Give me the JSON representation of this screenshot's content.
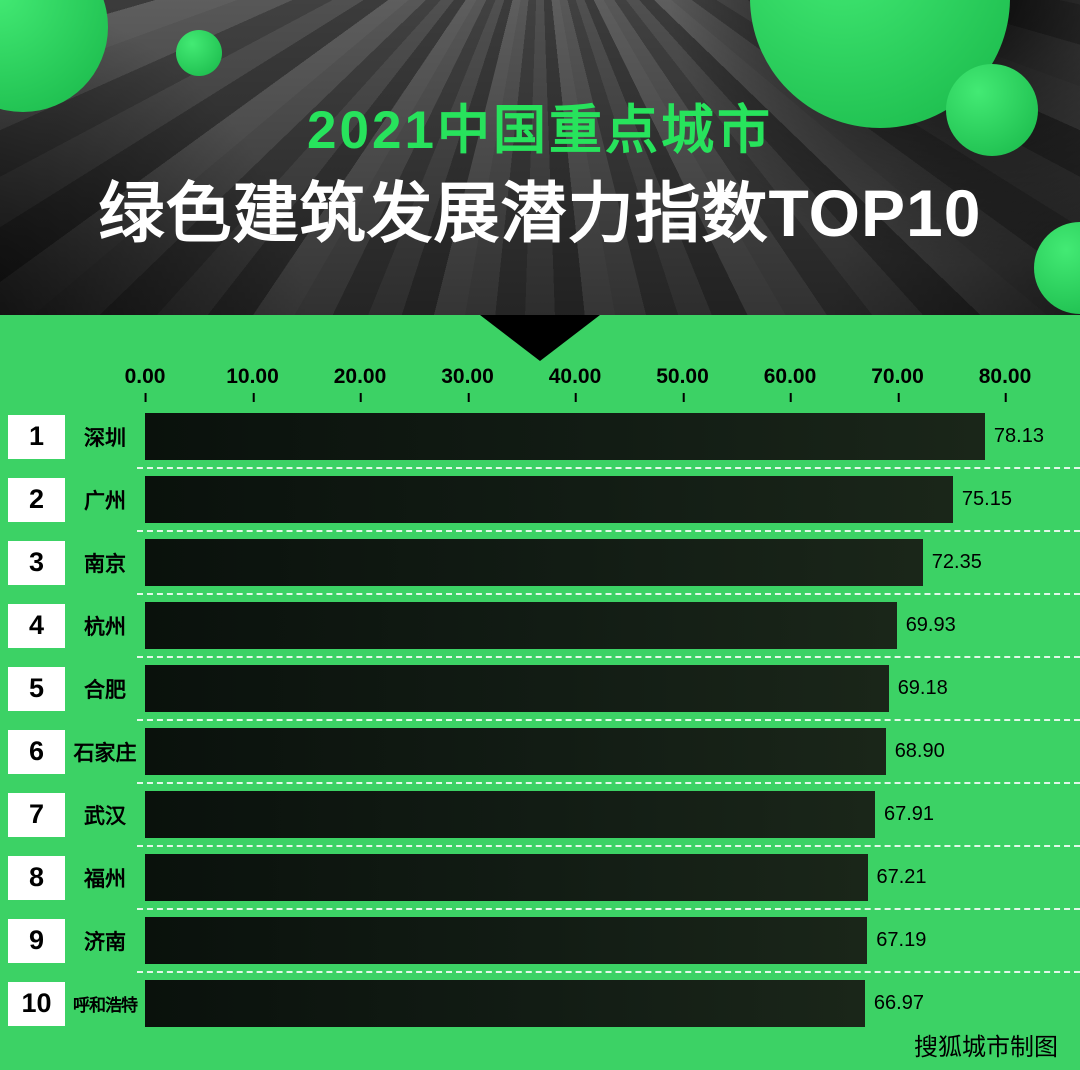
{
  "header": {
    "title_line1": "2021中国重点城市",
    "title_line2": "绿色建筑发展潜力指数TOP10"
  },
  "chart_data": {
    "type": "bar",
    "orientation": "horizontal",
    "title": "2021中国重点城市绿色建筑发展潜力指数TOP10",
    "categories": [
      "深圳",
      "广州",
      "南京",
      "杭州",
      "合肥",
      "石家庄",
      "武汉",
      "福州",
      "济南",
      "呼和浩特"
    ],
    "ranks": [
      "1",
      "2",
      "3",
      "4",
      "5",
      "6",
      "7",
      "8",
      "9",
      "10"
    ],
    "values": [
      78.13,
      75.15,
      72.35,
      69.93,
      69.18,
      68.9,
      67.91,
      67.21,
      67.19,
      66.97
    ],
    "value_labels": [
      "78.13",
      "75.15",
      "72.35",
      "69.93",
      "69.18",
      "68.90",
      "67.91",
      "67.21",
      "67.19",
      "66.97"
    ],
    "x_ticks": [
      "0.00",
      "10.00",
      "20.00",
      "30.00",
      "40.00",
      "50.00",
      "60.00",
      "70.00",
      "80.00"
    ],
    "xlim": [
      0,
      80
    ],
    "grid": "dashed-row-separators",
    "legend": "none",
    "bar_label_position": "outside-right"
  },
  "footer": {
    "credit": "搜狐城市制图"
  },
  "colors": {
    "background": "#3cd265",
    "title_green": "#27e35c",
    "title_white": "#ffffff",
    "bar_dark": "#101a13",
    "text_black": "#000000",
    "rank_box_bg": "#ffffff",
    "circle_light": "#43ea74",
    "circle_dark": "#17b648",
    "separator_dashed": "rgba(255,255,255,0.85)"
  }
}
